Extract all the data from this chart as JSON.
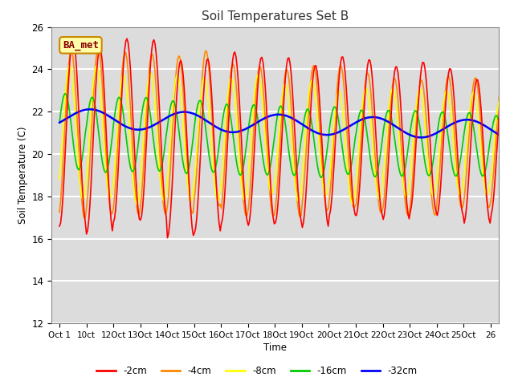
{
  "title": "Soil Temperatures Set B",
  "xlabel": "Time",
  "ylabel": "Soil Temperature (C)",
  "ylim": [
    12,
    26
  ],
  "annotation": "BA_met",
  "x_tick_labels": [
    "Oct 1",
    "10ct",
    "12Oct",
    "13Oct",
    "14Oct",
    "15Oct",
    "16Oct",
    "17Oct",
    "18Oct",
    "19Oct",
    "20Oct",
    "21Oct",
    "22Oct",
    "23Oct",
    "24Oct",
    "25Oct",
    "26"
  ],
  "legend_labels": [
    "-2cm",
    "-4cm",
    "-8cm",
    "-16cm",
    "-32cm"
  ],
  "line_colors": [
    "#ff0000",
    "#ff8800",
    "#ffff00",
    "#00cc00",
    "#0000ff"
  ],
  "line_widths": [
    1.2,
    1.2,
    1.2,
    1.2,
    1.8
  ],
  "fig_bg": "#ffffff",
  "plot_bg": "#dcdcdc"
}
